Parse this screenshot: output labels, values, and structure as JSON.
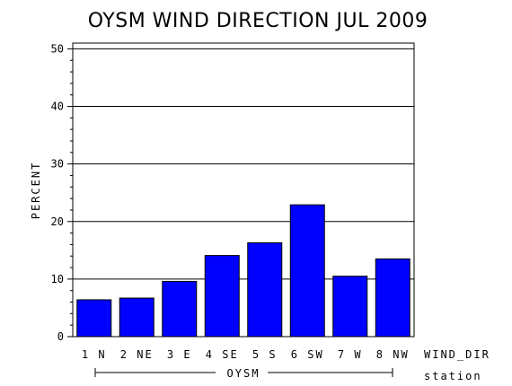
{
  "chart_data": {
    "type": "bar",
    "title": "OYSM WIND DIRECTION JUL 2009",
    "ylabel": "PERCENT",
    "xlabel": "WIND_DIR",
    "group_label": "OYSM",
    "group_axis_label": "station",
    "categories": [
      "1 N",
      "2 NE",
      "3 E",
      "4 SE",
      "5 S",
      "6 SW",
      "7 W",
      "8 NW"
    ],
    "values": [
      6.4,
      6.7,
      9.6,
      14.1,
      16.3,
      22.9,
      10.5,
      13.5
    ],
    "ylim": [
      0,
      51
    ],
    "yticks": [
      0,
      10,
      20,
      30,
      40,
      50
    ],
    "grid": true,
    "bar_color": "#0000ff"
  }
}
